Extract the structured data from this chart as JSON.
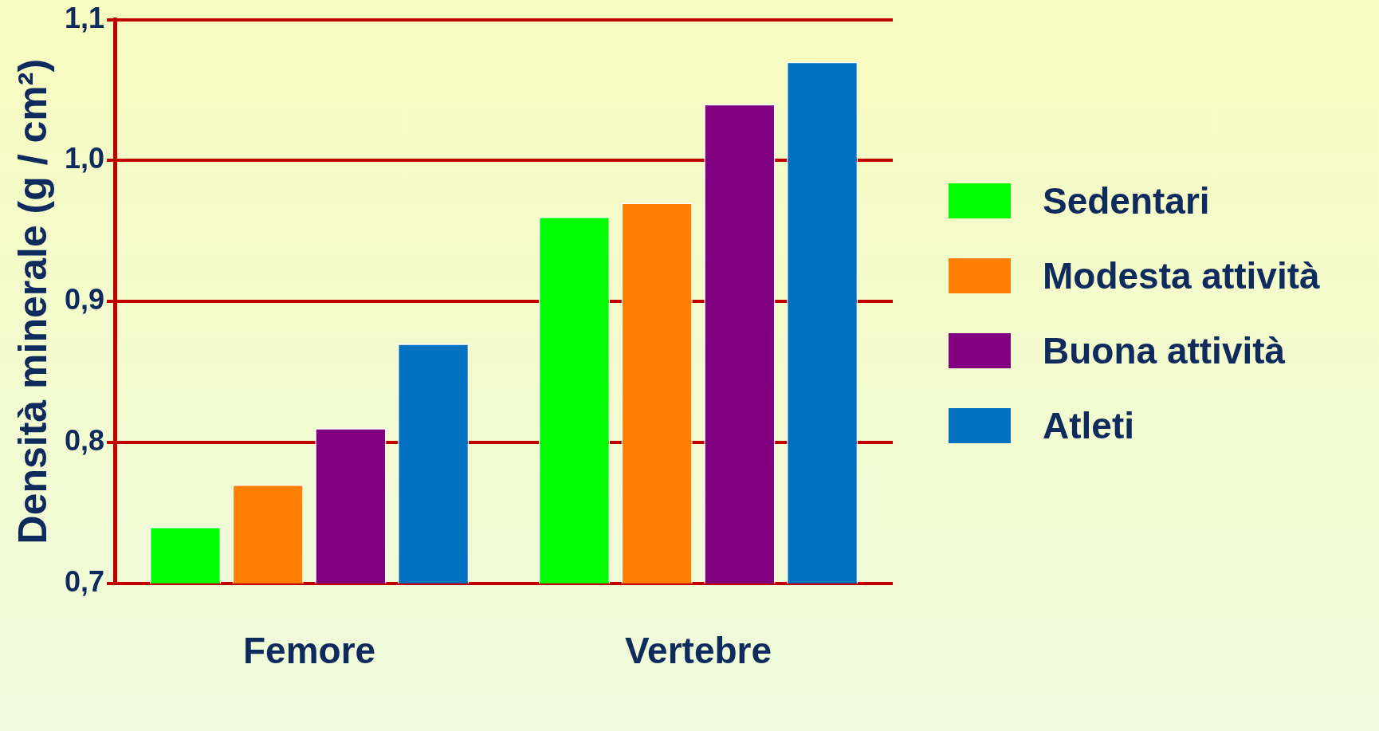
{
  "chart_data": {
    "type": "bar",
    "ylabel": "Densità minerale (g / cm²)",
    "categories": [
      "Femore",
      "Vertebre"
    ],
    "series": [
      {
        "name": "Sedentari",
        "color": "#00ff00",
        "values": [
          0.74,
          0.96
        ]
      },
      {
        "name": "Modesta attività",
        "color": "#ff8000",
        "values": [
          0.77,
          0.97
        ]
      },
      {
        "name": "Buona attività",
        "color": "#800080",
        "values": [
          0.81,
          1.04
        ]
      },
      {
        "name": "Atleti",
        "color": "#0070c0",
        "values": [
          0.87,
          1.07
        ]
      }
    ],
    "ylim": [
      0.7,
      1.1
    ],
    "yticks": [
      {
        "value": 0.7,
        "label": "0,7"
      },
      {
        "value": 0.8,
        "label": "0,8"
      },
      {
        "value": 0.9,
        "label": "0,9"
      },
      {
        "value": 1.0,
        "label": "1,0"
      },
      {
        "value": 1.1,
        "label": "1,1"
      }
    ],
    "grid": "y",
    "legend": "right"
  }
}
